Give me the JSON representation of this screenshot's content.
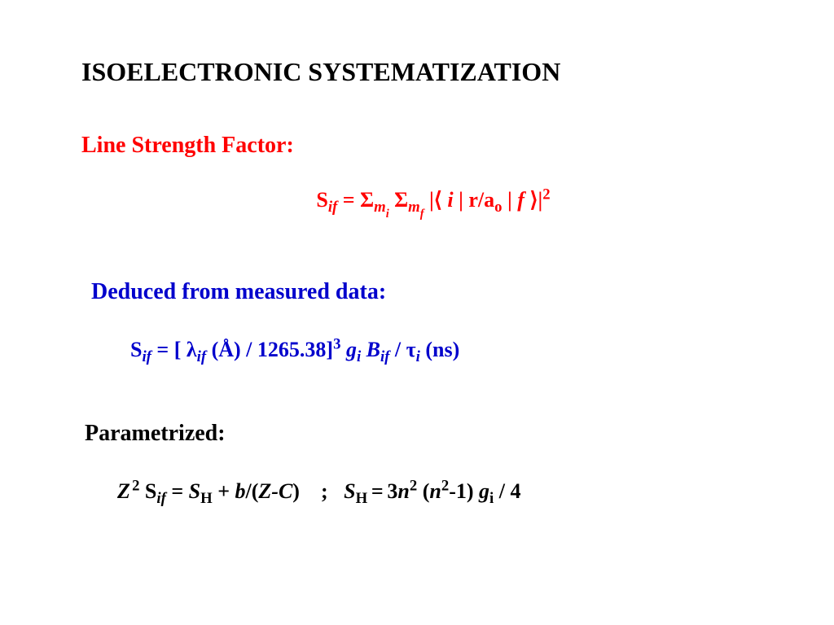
{
  "title": "ISOELECTRONIC SYSTEMATIZATION",
  "section1": {
    "heading": "Line Strength Factor:",
    "color": "#ff0000",
    "formula_plain": "S_if = Σ_mi Σ_mf |⟨ i | r/a_o | f ⟩|^2"
  },
  "section2": {
    "heading": "Deduced from measured data:",
    "color": "#0000cc",
    "formula_plain": "S_if = [ λ_if (Å) / 1265.38]^3 g_i B_if / τ_i (ns)"
  },
  "section3": {
    "heading": "Parametrized:",
    "color": "#000000",
    "formula_plain": "Z^2 S_if = S_H + b/(Z-C)   ;   S_H = 3n^2 (n^2-1) g_i / 4"
  },
  "styling": {
    "background_color": "#ffffff",
    "title_fontsize": 32,
    "heading_fontsize": 28,
    "formula_fontsize": 26,
    "font_family": "Times New Roman",
    "font_weight": "bold"
  }
}
